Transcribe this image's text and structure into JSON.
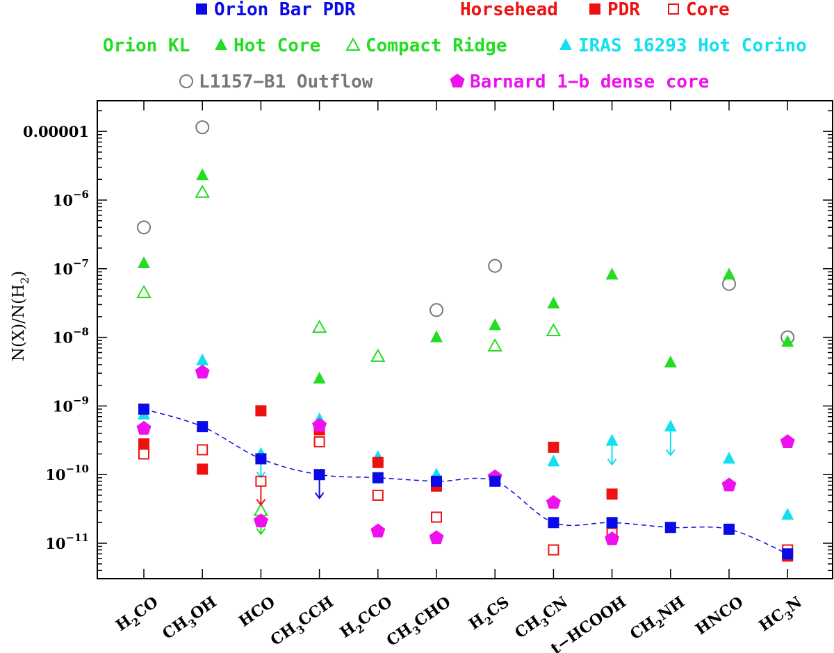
{
  "chart_data": {
    "type": "scatter",
    "ylabel": "N(X)/N(H2)",
    "yscale": "log",
    "ylim": [
      3e-12,
      5e-05
    ],
    "categories": [
      "H2CO",
      "CH3OH",
      "HCO",
      "CH3CCH",
      "H2CCO",
      "CH3CHO",
      "H2CS",
      "CH3CN",
      "t-HCOOH",
      "CH2NH",
      "HNCO",
      "HC3N"
    ],
    "category_labels": [
      {
        "base": "H",
        "sub": "2",
        "rest": "CO"
      },
      {
        "base": "CH",
        "sub": "3",
        "rest": "OH"
      },
      {
        "base": "HCO",
        "sub": "",
        "rest": ""
      },
      {
        "base": "CH",
        "sub": "3",
        "rest": "CCH"
      },
      {
        "base": "H",
        "sub": "2",
        "rest": "CCO"
      },
      {
        "base": "CH",
        "sub": "3",
        "rest": "CHO"
      },
      {
        "base": "H",
        "sub": "2",
        "rest": "CS"
      },
      {
        "base": "CH",
        "sub": "3",
        "rest": "CN"
      },
      {
        "base": "t−HCOOH",
        "sub": "",
        "rest": ""
      },
      {
        "base": "CH",
        "sub": "2",
        "rest": "NH"
      },
      {
        "base": "HNCO",
        "sub": "",
        "rest": ""
      },
      {
        "base": "HC",
        "sub": "3",
        "rest": "N"
      }
    ],
    "yticks": [
      {
        "value": 1e-11,
        "base": "10",
        "exp": "−11",
        "plain": ""
      },
      {
        "value": 1e-10,
        "base": "10",
        "exp": "−10",
        "plain": ""
      },
      {
        "value": 1e-09,
        "base": "10",
        "exp": "−9",
        "plain": ""
      },
      {
        "value": 1e-08,
        "base": "10",
        "exp": "−8",
        "plain": ""
      },
      {
        "value": 1e-07,
        "base": "10",
        "exp": "−7",
        "plain": ""
      },
      {
        "value": 1e-06,
        "base": "10",
        "exp": "−6",
        "plain": ""
      },
      {
        "value": 1e-05,
        "base": "",
        "exp": "",
        "plain": "0.00001"
      }
    ],
    "legend": {
      "placement": "top",
      "rows": [
        [
          {
            "text": "Orion Bar PDR",
            "color": "#0a0ae6",
            "marker": "square-filled"
          }
        ],
        [
          {
            "text": "Horsehead",
            "color": "#ee1111",
            "marker": ""
          },
          {
            "text": "PDR",
            "color": "#ee1111",
            "marker": "square-filled"
          },
          {
            "text": "Core",
            "color": "#ee1111",
            "marker": "square-open"
          }
        ],
        [
          {
            "text": "Orion KL",
            "color": "#22dd22",
            "marker": ""
          },
          {
            "text": "Hot Core",
            "color": "#22dd22",
            "marker": "triangle-filled"
          },
          {
            "text": "Compact Ridge",
            "color": "#22dd22",
            "marker": "triangle-open"
          },
          {
            "text": "IRAS 16293 Hot Corino",
            "color": "#11e0ee",
            "marker": "triangle-filled"
          }
        ],
        [
          {
            "text": "L1157−B1 Outflow",
            "color": "#777777",
            "marker": "circle-open"
          },
          {
            "text": "Barnard 1−b dense core",
            "color": "#ee11ee",
            "marker": "pentagon-filled"
          }
        ]
      ]
    },
    "series": [
      {
        "name": "Orion Bar PDR",
        "color": "#0a0ae6",
        "marker": "square-filled",
        "values": [
          9e-10,
          5e-10,
          1.7e-10,
          1e-10,
          9e-11,
          8e-11,
          8e-11,
          2e-11,
          2e-11,
          1.7e-11,
          1.6e-11,
          7e-12
        ],
        "upper_limits": [
          "CH3CCH"
        ],
        "fit_line": true
      },
      {
        "name": "Horsehead PDR",
        "color": "#ee1111",
        "marker": "square-filled",
        "values": [
          2.8e-10,
          1.2e-10,
          8.5e-10,
          4.5e-10,
          1.5e-10,
          6.8e-11,
          null,
          2.5e-10,
          5.2e-11,
          null,
          null,
          6.5e-12
        ]
      },
      {
        "name": "Horsehead Core",
        "color": "#ee1111",
        "marker": "square-open",
        "values": [
          2e-10,
          2.3e-10,
          8e-11,
          3e-10,
          5e-11,
          2.4e-11,
          null,
          8e-12,
          1.4e-11,
          null,
          null,
          8e-12
        ],
        "upper_limits": [
          "HCO"
        ]
      },
      {
        "name": "Orion KL Hot Core",
        "color": "#22dd22",
        "marker": "triangle-filled",
        "values": [
          1.2e-07,
          2.3e-06,
          null,
          2.5e-09,
          null,
          1e-08,
          1.5e-08,
          3.1e-08,
          8.2e-08,
          4.3e-09,
          8.2e-08,
          8.6e-09
        ]
      },
      {
        "name": "Orion KL Compact Ridge",
        "color": "#22dd22",
        "marker": "triangle-open",
        "values": [
          4.5e-08,
          1.3e-06,
          3e-11,
          1.4e-08,
          5.3e-09,
          null,
          7.5e-09,
          1.25e-08,
          null,
          null,
          null,
          null
        ],
        "upper_limits": [
          "HCO"
        ]
      },
      {
        "name": "IRAS 16293 Hot Corino",
        "color": "#11e0ee",
        "marker": "triangle-filled",
        "values": [
          7.5e-10,
          4.6e-09,
          2e-10,
          6.4e-10,
          1.8e-10,
          1e-10,
          null,
          1.55e-10,
          3.1e-10,
          5e-10,
          1.7e-10,
          2.6e-11
        ],
        "upper_limits": [
          "HCO",
          "t-HCOOH"
        ],
        "ranges": [
          {
            "category": "CH2NH",
            "low": 2.2e-10,
            "high": 5e-10
          }
        ]
      },
      {
        "name": "L1157-B1 Outflow",
        "color": "#777777",
        "marker": "circle-open",
        "values": [
          4e-07,
          1.15e-05,
          null,
          null,
          null,
          2.5e-08,
          1.1e-07,
          null,
          null,
          null,
          6e-08,
          1e-08
        ]
      },
      {
        "name": "Barnard 1-b dense core",
        "color": "#ee11ee",
        "marker": "pentagon-filled",
        "values": [
          4.7e-10,
          3.1e-09,
          2.1e-11,
          5.2e-10,
          1.5e-11,
          1.2e-11,
          9.2e-11,
          3.9e-11,
          1.15e-11,
          null,
          7e-11,
          3e-10
        ]
      }
    ]
  }
}
